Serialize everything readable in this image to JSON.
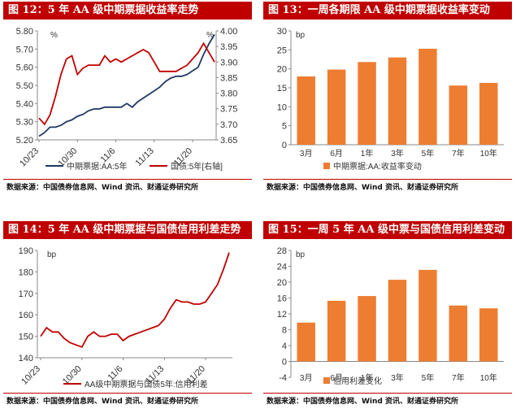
{
  "panels": [
    {
      "title": "图 12：5 年 AA 级中期票据收益率走势",
      "source": "数据来源：中国债券信息网、Wind 资讯、财通证券研究所"
    },
    {
      "title": "图 13：一周各期限 AA 级中期票据收益率变动",
      "source": "数据来源：中国债券信息网、Wind 资讯、财通证券研究所"
    },
    {
      "title": "图 14：5 年 AA 级中期票据与国债信用利差走势",
      "source": "数据来源：中国债券信息网、Wind 资讯、财通证券研究所"
    },
    {
      "title": "图 15：一周 5 年 AA 级中票与国债信用利差变动",
      "source": "数据来源：中国债券信息网、Wind 资讯、财通证券研究所"
    }
  ],
  "colors": {
    "accent": "#c00000",
    "navy": "#1f3864",
    "red": "#c00000",
    "orange": "#ed7d31"
  },
  "chart_data": [
    {
      "type": "line",
      "x_ticks": [
        "10/23",
        "10/30",
        "11/6",
        "11/13",
        "11/20"
      ],
      "left_unit": "%",
      "right_unit": "%",
      "ylim_left": [
        5.2,
        5.8
      ],
      "ylim_right": [
        3.65,
        4.0
      ],
      "left_ticks": [
        "5.80",
        "5.70",
        "5.60",
        "5.50",
        "5.40",
        "5.30",
        "5.20"
      ],
      "right_ticks": [
        "4.00",
        "3.95",
        "3.90",
        "3.85",
        "3.80",
        "3.75",
        "3.70",
        "3.65"
      ],
      "series": [
        {
          "name": "中期票据:AA:5年",
          "axis": "left",
          "color": "#1f3864",
          "values": [
            5.22,
            5.24,
            5.27,
            5.27,
            5.28,
            5.3,
            5.31,
            5.33,
            5.34,
            5.36,
            5.37,
            5.37,
            5.38,
            5.38,
            5.38,
            5.38,
            5.4,
            5.38,
            5.41,
            5.43,
            5.45,
            5.47,
            5.49,
            5.52,
            5.54,
            5.55,
            5.55,
            5.56,
            5.58,
            5.6,
            5.67,
            5.73,
            5.78
          ]
        },
        {
          "name": "国债:5年[右轴]",
          "axis": "right",
          "color": "#c00000",
          "values": [
            3.72,
            3.7,
            3.73,
            3.79,
            3.86,
            3.91,
            3.92,
            3.86,
            3.88,
            3.89,
            3.89,
            3.89,
            3.92,
            3.9,
            3.91,
            3.9,
            3.91,
            3.92,
            3.93,
            3.94,
            3.93,
            3.9,
            3.87,
            3.87,
            3.87,
            3.87,
            3.88,
            3.89,
            3.91,
            3.93,
            3.96,
            3.93,
            3.9
          ]
        }
      ]
    },
    {
      "type": "bar",
      "ylabel": "bp",
      "ylim": [
        0,
        30
      ],
      "y_ticks": [
        "30",
        "25",
        "20",
        "15",
        "10",
        "5",
        "0"
      ],
      "categories": [
        "3月",
        "6月",
        "1年",
        "3年",
        "5年",
        "7年",
        "10年"
      ],
      "values": [
        18.0,
        19.8,
        21.8,
        23.0,
        25.3,
        15.6,
        16.3
      ],
      "legend": "中期票据:AA:收益率变动",
      "color": "#ed7d31"
    },
    {
      "type": "line",
      "ylabel": "bp",
      "ylim": [
        140,
        190
      ],
      "y_ticks": [
        "190",
        "180",
        "170",
        "160",
        "150",
        "140"
      ],
      "x_ticks": [
        "10/23",
        "10/30",
        "11/6",
        "11/13",
        "11/20"
      ],
      "series": [
        {
          "name": "AA级中期票据与国债5年:信用利差",
          "color": "#c00000",
          "values": [
            150,
            154,
            152,
            152,
            149,
            147,
            146,
            145,
            150,
            152,
            150,
            150,
            151,
            151,
            148,
            150,
            151,
            152,
            153,
            154,
            155,
            158,
            163,
            167,
            166,
            166,
            165,
            165,
            166,
            170,
            174,
            181,
            189
          ]
        }
      ]
    },
    {
      "type": "bar",
      "ylabel": "bp",
      "ylim": [
        -4,
        28
      ],
      "y_ticks": [
        "28",
        "24",
        "20",
        "16",
        "12",
        "8",
        "4",
        "0",
        "-4"
      ],
      "categories": [
        "3月",
        "6月",
        "1年",
        "3年",
        "5年",
        "7年",
        "10年"
      ],
      "values": [
        9.8,
        15.3,
        16.5,
        20.6,
        23.1,
        14.1,
        13.4
      ],
      "legend": "信用利差变化",
      "color": "#ed7d31"
    }
  ]
}
